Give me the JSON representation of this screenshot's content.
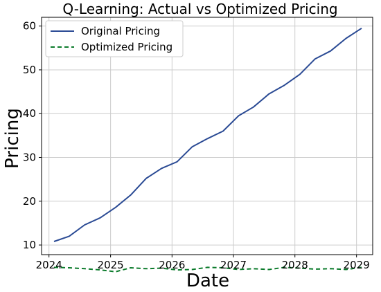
{
  "chart_data": {
    "type": "line",
    "title": "Q-Learning: Actual vs Optimized Pricing",
    "xlabel": "Date",
    "ylabel": "Pricing",
    "x_ticks": [
      "2024",
      "2025",
      "2026",
      "2027",
      "2028",
      "2029"
    ],
    "y_ticks": [
      "10",
      "20",
      "30",
      "40",
      "50",
      "60"
    ],
    "xlim": [
      "2023-11-18",
      "2029-04-07"
    ],
    "ylim": [
      7.8,
      62.0
    ],
    "grid": true,
    "legend_position": "top-left",
    "x": [
      "2024-01-31",
      "2024-04-30",
      "2024-07-31",
      "2024-10-31",
      "2025-01-31",
      "2025-04-30",
      "2025-07-31",
      "2025-10-31",
      "2026-01-31",
      "2026-04-30",
      "2026-07-31",
      "2026-10-31",
      "2027-01-31",
      "2027-04-30",
      "2027-07-31",
      "2027-10-31",
      "2028-01-31",
      "2028-04-30",
      "2028-07-31",
      "2028-10-31",
      "2029-01-31"
    ],
    "series": [
      {
        "name": "Original Pricing",
        "color": "#2a4a94",
        "style": "solid",
        "values": [
          10.8,
          12.0,
          14.6,
          16.2,
          18.6,
          21.4,
          25.2,
          27.5,
          29.0,
          32.4,
          34.3,
          36.0,
          39.5,
          41.5,
          44.5,
          46.5,
          49.0,
          52.5,
          54.3,
          57.2,
          59.5
        ]
      },
      {
        "name": "Optimized Pricing",
        "color": "#0a7a2a",
        "style": "dashed",
        "values": [
          4.9,
          4.8,
          4.6,
          4.3,
          3.9,
          4.8,
          4.6,
          4.7,
          4.3,
          4.4,
          4.9,
          4.8,
          4.4,
          4.6,
          4.4,
          4.9,
          4.7,
          4.5,
          4.6,
          4.4,
          4.9
        ]
      }
    ]
  }
}
